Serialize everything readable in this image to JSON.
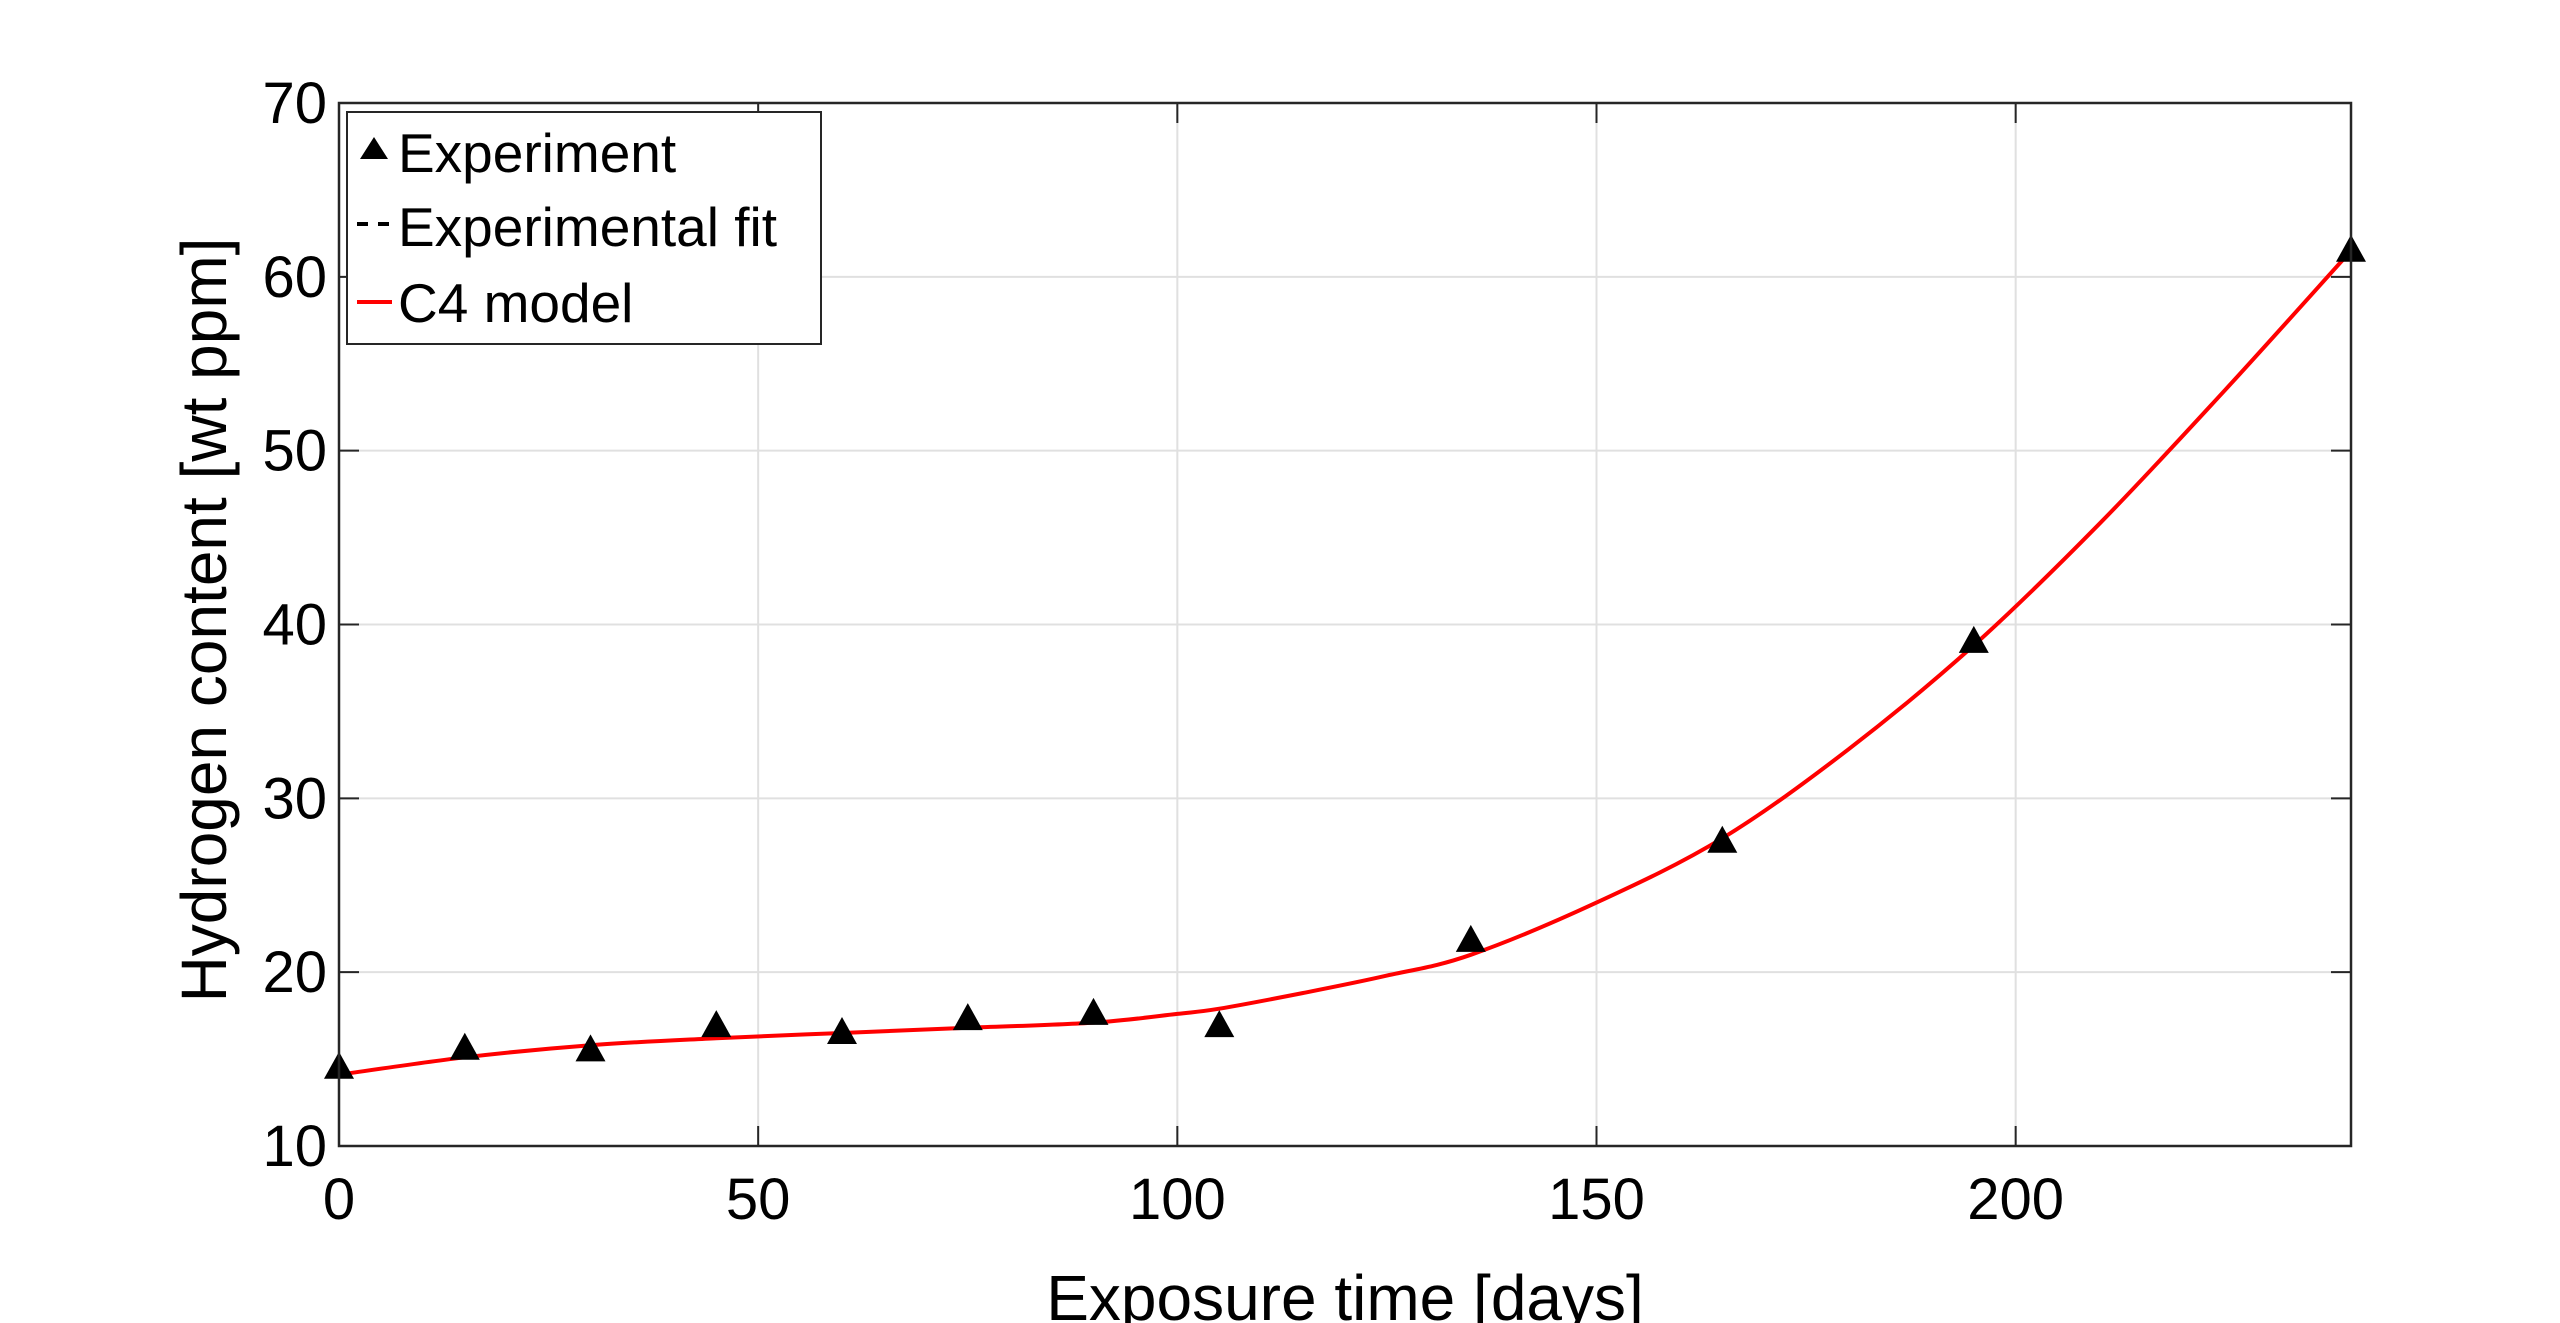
{
  "chart_data": {
    "type": "scatter",
    "title": "",
    "xlabel": "Exposure time [days]",
    "ylabel": "Hydrogen content [wt ppm]",
    "xlim": [
      0,
      240
    ],
    "ylim": [
      10,
      70
    ],
    "xticks": [
      0,
      50,
      100,
      150,
      200
    ],
    "yticks": [
      10,
      20,
      30,
      40,
      50,
      60,
      70
    ],
    "grid": true,
    "legend_position": "top-left",
    "series": [
      {
        "name": "Experiment",
        "kind": "scatter",
        "marker": "triangle",
        "color": "#000000",
        "x": [
          0,
          15,
          30,
          45,
          60,
          75,
          90,
          105,
          135,
          165,
          195,
          240
        ],
        "y": [
          14.5,
          15.6,
          15.5,
          16.9,
          16.5,
          17.3,
          17.6,
          16.9,
          21.8,
          27.5,
          39.0,
          61.5
        ]
      },
      {
        "name": "Experimental fit",
        "kind": "line",
        "dash": "dashed",
        "color": "#000000",
        "x": [],
        "y": []
      },
      {
        "name": "C4 model",
        "kind": "line",
        "color": "#ff0000",
        "x": [
          0,
          15,
          30,
          45,
          60,
          75,
          90,
          100,
          105,
          115,
          125,
          135,
          150,
          165,
          180,
          195,
          210,
          225,
          240
        ],
        "y": [
          14.1,
          15.1,
          15.8,
          16.2,
          16.5,
          16.8,
          17.1,
          17.6,
          17.9,
          18.8,
          19.8,
          21.0,
          24.0,
          27.7,
          32.8,
          38.8,
          45.8,
          53.5,
          61.5
        ]
      }
    ]
  }
}
